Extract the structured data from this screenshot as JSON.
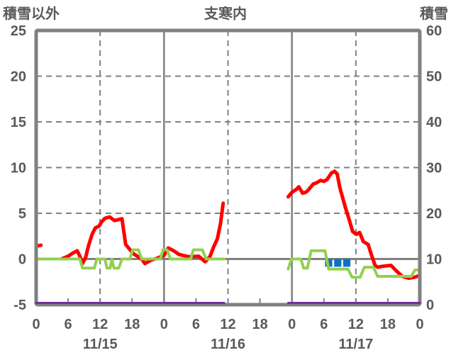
{
  "header": {
    "left_axis_title": "積雪以外",
    "chart_title": "支寒内",
    "right_axis_title": "積雪"
  },
  "colors": {
    "frame_gray": "#808080",
    "label_gray": "#595959",
    "red_line": "#ff0000",
    "green_line": "#92d050",
    "purple_line": "#7030a0",
    "blue_bar": "#0f72c1",
    "background": "#ffffff"
  },
  "chart_data": {
    "type": "line",
    "title": "支寒内",
    "left_axis_label": "積雪以外",
    "right_axis_label": "積雪",
    "left_ylim": [
      -5,
      25
    ],
    "right_ylim": [
      0,
      60
    ],
    "x_range_hours": [
      0,
      72
    ],
    "left_ticks": [
      25,
      20,
      15,
      10,
      5,
      0,
      -5
    ],
    "right_ticks": [
      60,
      50,
      40,
      30,
      20,
      10,
      0
    ],
    "x_tick_hours": [
      0,
      6,
      12,
      18,
      24,
      30,
      36,
      42,
      48,
      54,
      60,
      66,
      72
    ],
    "x_tick_labels": [
      "0",
      "6",
      "12",
      "18",
      "0",
      "6",
      "12",
      "18",
      "0",
      "6",
      "12",
      "18",
      "0"
    ],
    "date_labels": [
      {
        "label": "11/15",
        "center_hour": 12
      },
      {
        "label": "11/16",
        "center_hour": 36
      },
      {
        "label": "11/17",
        "center_hour": 60
      }
    ],
    "grid": {
      "horizontal_dashed_left_values": [
        20,
        15,
        10,
        5
      ],
      "zero_line_left_value": 0,
      "vertical_solid_hours": [
        24,
        48
      ],
      "vertical_dashed_hours": [
        12,
        36,
        60
      ]
    },
    "series": [
      {
        "name": "red-line",
        "axis": "left",
        "color": "#ff0000",
        "width": 5,
        "segments": [
          [
            [
              0,
              1.4
            ],
            [
              0.9,
              1.5
            ]
          ],
          [
            [
              4.9,
              0.05
            ],
            [
              6,
              0.3
            ],
            [
              6.9,
              0.65
            ],
            [
              7.7,
              0.9
            ],
            [
              8.2,
              0.3
            ],
            [
              8.7,
              -0.5
            ],
            [
              9.3,
              0.2
            ],
            [
              9.8,
              1.4
            ],
            [
              10.5,
              2.7
            ],
            [
              11.1,
              3.4
            ],
            [
              11.8,
              3.6
            ],
            [
              12.2,
              4.0
            ],
            [
              12.9,
              4.45
            ],
            [
              13.8,
              4.6
            ],
            [
              14.7,
              4.2
            ],
            [
              16.1,
              4.4
            ],
            [
              16.8,
              1.6
            ],
            [
              18.2,
              0.6
            ],
            [
              19.8,
              0
            ],
            [
              20.4,
              -0.5
            ],
            [
              21.5,
              -0.15
            ],
            [
              22.8,
              0.1
            ],
            [
              24,
              0.4
            ],
            [
              24.8,
              1.2
            ],
            [
              25.8,
              0.9
            ],
            [
              26.8,
              0.5
            ],
            [
              28.6,
              0.25
            ],
            [
              30.5,
              0.3
            ],
            [
              31.7,
              -0.3
            ],
            [
              32.6,
              0.25
            ],
            [
              33.3,
              1.3
            ],
            [
              34,
              2.2
            ],
            [
              34.6,
              3.9
            ],
            [
              34.9,
              5.2
            ],
            [
              35.1,
              6.1
            ]
          ],
          [
            [
              47.3,
              6.8
            ],
            [
              48,
              7.3
            ],
            [
              48.8,
              7.6
            ],
            [
              49.3,
              7.9
            ],
            [
              50,
              7.2
            ],
            [
              50.6,
              7.3
            ],
            [
              51,
              7.5
            ],
            [
              52,
              8.2
            ],
            [
              52.5,
              8.3
            ],
            [
              53.4,
              8.6
            ],
            [
              54,
              8.5
            ],
            [
              54.6,
              8.7
            ],
            [
              55.4,
              9.4
            ],
            [
              56,
              9.6
            ],
            [
              56.5,
              9.3
            ],
            [
              57,
              7.8
            ],
            [
              58,
              5.7
            ],
            [
              58.8,
              4.2
            ],
            [
              59.4,
              3.0
            ],
            [
              60.1,
              2.7
            ],
            [
              60.7,
              2.9
            ],
            [
              61.4,
              1.9
            ],
            [
              62.3,
              1.6
            ],
            [
              63,
              0.3
            ],
            [
              63.6,
              -0.7
            ],
            [
              64.1,
              -0.9
            ],
            [
              65,
              -0.8
            ],
            [
              66.6,
              -0.7
            ],
            [
              67.6,
              -1.3
            ],
            [
              68.7,
              -1.9
            ],
            [
              69.9,
              -2.1
            ],
            [
              71,
              -2.0
            ],
            [
              72,
              -1.8
            ]
          ]
        ]
      },
      {
        "name": "green-line",
        "axis": "left",
        "color": "#92d050",
        "width": 4,
        "segments": [
          [
            [
              0,
              0
            ],
            [
              8.2,
              0
            ],
            [
              8.7,
              -1
            ],
            [
              10.9,
              -1
            ],
            [
              11.4,
              0
            ],
            [
              12.9,
              0
            ],
            [
              13.3,
              -1
            ],
            [
              13.9,
              -1
            ],
            [
              14.2,
              0
            ],
            [
              14.6,
              -1
            ],
            [
              15.5,
              -1
            ],
            [
              16.1,
              0
            ],
            [
              17.6,
              0
            ],
            [
              18.1,
              1
            ],
            [
              19.2,
              1
            ],
            [
              19.8,
              0
            ],
            [
              23.3,
              0
            ],
            [
              23.8,
              1
            ],
            [
              24.6,
              1
            ],
            [
              25.2,
              0
            ],
            [
              29.0,
              0
            ],
            [
              29.5,
              1
            ],
            [
              31.2,
              1
            ],
            [
              31.9,
              0
            ],
            [
              35.3,
              0
            ]
          ],
          [
            [
              47.3,
              -1.1
            ],
            [
              47.9,
              0
            ],
            [
              49.7,
              0
            ],
            [
              50.2,
              -1
            ],
            [
              50.9,
              -1
            ],
            [
              51.6,
              0.9
            ],
            [
              54.2,
              0.9
            ],
            [
              54.9,
              -1.1
            ],
            [
              58.5,
              -1.1
            ],
            [
              59.3,
              -2
            ],
            [
              60.8,
              -2
            ],
            [
              61.6,
              -0.9
            ],
            [
              63.3,
              -0.9
            ],
            [
              64.1,
              -1.9
            ],
            [
              70.4,
              -1.9
            ],
            [
              71.1,
              -1.2
            ],
            [
              72,
              -1.2
            ]
          ]
        ]
      },
      {
        "name": "purple-line",
        "axis": "right",
        "color": "#7030a0",
        "width": 3,
        "segments": [
          [
            [
              0,
              0
            ],
            [
              35.3,
              0
            ]
          ],
          [
            [
              47.3,
              0
            ],
            [
              72,
              0
            ]
          ]
        ]
      }
    ],
    "bars": {
      "name": "blue-bars",
      "color": "#0f72c1",
      "axis": "left",
      "top_value": 0,
      "bottom_value": -0.85,
      "width_hours": 1.35,
      "center_hours": [
        54.9,
        56.6,
        58.3
      ]
    }
  }
}
